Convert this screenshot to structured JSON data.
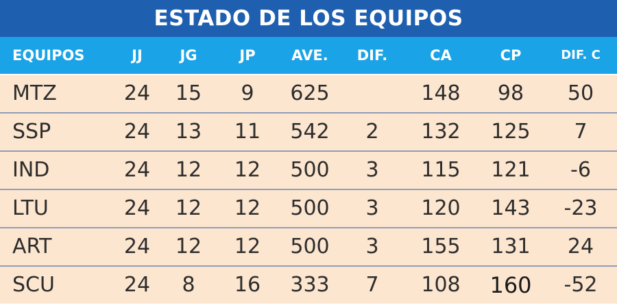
{
  "title": "ESTADO DE LOS EQUIPOS",
  "columns": [
    "EQUIPOS",
    "JJ",
    "JG",
    "JP",
    "AVE.",
    "DIF.",
    "CA",
    "CP",
    "DIF. C"
  ],
  "rows": [
    [
      "MTZ",
      "24",
      "15",
      "9",
      "625",
      "",
      "148",
      "98",
      "50"
    ],
    [
      "SSP",
      "24",
      "13",
      "11",
      "542",
      "2",
      "132",
      "125",
      "7"
    ],
    [
      "IND",
      "24",
      "12",
      "12",
      "500",
      "3",
      "115",
      "121",
      "-6"
    ],
    [
      "LTU",
      "24",
      "12",
      "12",
      "500",
      "3",
      "120",
      "143",
      "-23"
    ],
    [
      "ART",
      "24",
      "12",
      "12",
      "500",
      "3",
      "155",
      "131",
      "24"
    ],
    [
      "SCU",
      "24",
      "8",
      "16",
      "333",
      "7",
      "108",
      "160",
      "-52"
    ]
  ],
  "colors": {
    "title_bg": "#1e5fb0",
    "header_bg": "#1aa3e6",
    "row_bg": "#fce6cf",
    "separator": "#8f9db8"
  }
}
